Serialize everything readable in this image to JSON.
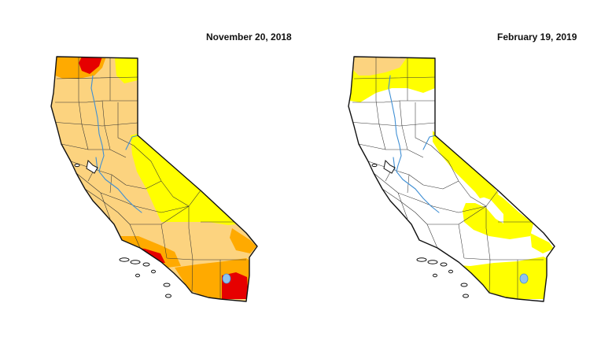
{
  "maps": [
    {
      "id": "left",
      "date": "November 20, 2018",
      "drought_colors": {
        "D0": "#ffff00",
        "D1": "#fcd37f",
        "D2": "#ffaa00",
        "D3": "#e60000"
      },
      "base_color": "#fcd37f",
      "areas": [
        {
          "category": "D2",
          "region": "far north coast and upper Sacramento area"
        },
        {
          "category": "D3",
          "region": "far north (Siskiyou/Shasta)"
        },
        {
          "category": "D0",
          "region": "northeast corner"
        },
        {
          "category": "D0",
          "region": "Sierra Nevada and eastern desert"
        },
        {
          "category": "D2",
          "region": "Santa Barbara / Ventura coast"
        },
        {
          "category": "D3",
          "region": "Santa Barbara / Ventura coast"
        },
        {
          "category": "D2",
          "region": "Los Angeles to San Diego"
        },
        {
          "category": "D3",
          "region": "San Diego area"
        }
      ]
    },
    {
      "id": "right",
      "date": "February 19, 2019",
      "drought_colors": {
        "D0": "#ffff00",
        "D1": "#fcd37f",
        "D2": "#ffaa00"
      },
      "base_color": "#ffffff",
      "areas": [
        {
          "category": "D0",
          "region": "far north and northeast"
        },
        {
          "category": "D1",
          "region": "far north (Siskiyou)"
        },
        {
          "category": "D0",
          "region": "southern San Joaquin Valley and Sierra"
        },
        {
          "category": "D0",
          "region": "Southern California coast to San Diego"
        }
      ]
    }
  ]
}
